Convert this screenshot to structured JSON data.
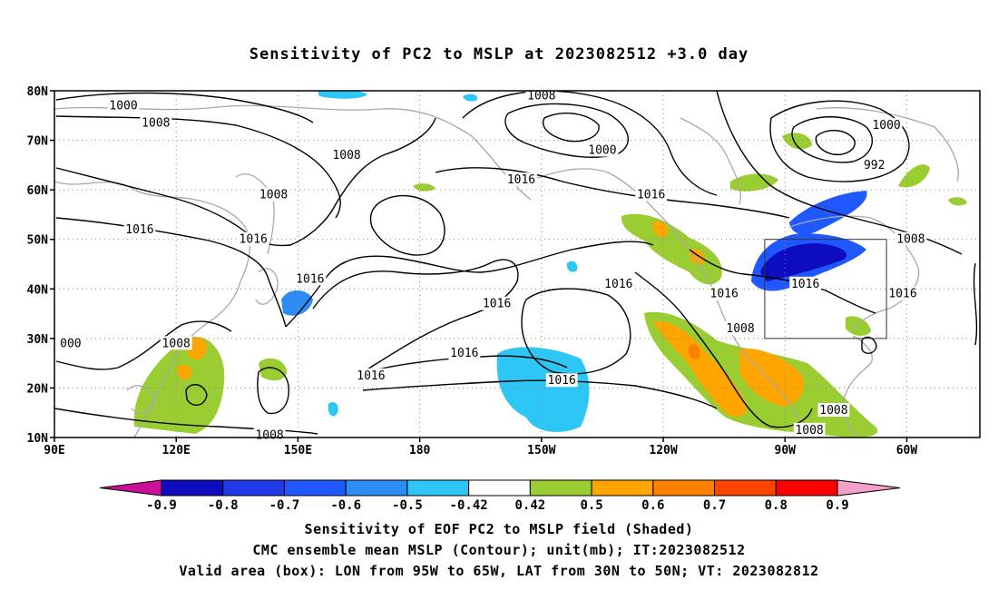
{
  "title": "Sensitivity of PC2 to MSLP at 2023082512 +3.0 day",
  "map": {
    "lat_labels": [
      "80N",
      "70N",
      "60N",
      "50N",
      "40N",
      "30N",
      "20N",
      "10N"
    ],
    "lon_labels": [
      "90E",
      "120E",
      "150E",
      "180",
      "150W",
      "120W",
      "90W",
      "60W"
    ],
    "lon_range_deg_east": [
      90,
      318
    ],
    "lat_range": [
      10,
      80
    ],
    "valid_box": {
      "lon": [
        -95,
        -65
      ],
      "lat": [
        30,
        50
      ]
    },
    "contour_labels": [
      {
        "text": "1000",
        "lon": 107,
        "lat": 77
      },
      {
        "text": "1008",
        "lon": 115,
        "lat": 73.5
      },
      {
        "text": "1008",
        "lon": 210,
        "lat": 79
      },
      {
        "text": "1000",
        "lon": 225,
        "lat": 68
      },
      {
        "text": "1000",
        "lon": 295,
        "lat": 73
      },
      {
        "text": "992",
        "lon": 292,
        "lat": 65
      },
      {
        "text": "1008",
        "lon": 162,
        "lat": 67
      },
      {
        "text": "1016",
        "lon": 205,
        "lat": 62
      },
      {
        "text": "1016",
        "lon": 237,
        "lat": 59
      },
      {
        "text": "1016",
        "lon": 111,
        "lat": 52
      },
      {
        "text": "1008",
        "lon": 144,
        "lat": 59
      },
      {
        "text": "1016",
        "lon": 139,
        "lat": 50
      },
      {
        "text": "1016",
        "lon": 153,
        "lat": 42
      },
      {
        "text": "1016",
        "lon": 199,
        "lat": 37
      },
      {
        "text": "1016",
        "lon": 229,
        "lat": 41
      },
      {
        "text": "1016",
        "lon": 255,
        "lat": 39
      },
      {
        "text": "1016",
        "lon": 275,
        "lat": 41
      },
      {
        "text": "1008",
        "lon": 301,
        "lat": 50
      },
      {
        "text": "1016",
        "lon": 299,
        "lat": 39
      },
      {
        "text": "1008",
        "lon": 120,
        "lat": 29
      },
      {
        "text": "000",
        "lon": 94,
        "lat": 29
      },
      {
        "text": "1016",
        "lon": 191,
        "lat": 27
      },
      {
        "text": "1016",
        "lon": 168,
        "lat": 22.5
      },
      {
        "text": "1016",
        "lon": 215,
        "lat": 21.5
      },
      {
        "text": "1008",
        "lon": 259,
        "lat": 32
      },
      {
        "text": "1008",
        "lon": 282,
        "lat": 15.5
      },
      {
        "text": "1008",
        "lon": 276,
        "lat": 11.5
      },
      {
        "text": "1008",
        "lon": 143,
        "lat": 10.5
      }
    ]
  },
  "colorbar": {
    "labels": [
      "-0.9",
      "-0.8",
      "-0.7",
      "-0.6",
      "-0.5",
      "-0.42",
      "0.42",
      "0.5",
      "0.6",
      "0.7",
      "0.8",
      "0.9"
    ],
    "colors": [
      "#c8109a",
      "#0d0dbf",
      "#1f39e8",
      "#1f58ff",
      "#2d8cf5",
      "#2ec7f5",
      "#ffffff",
      "#9acd32",
      "#ffa500",
      "#ff7f00",
      "#ff4500",
      "#ff0000",
      "#f5a0c8"
    ]
  },
  "captions": [
    "Sensitivity of EOF PC2 to MSLP field (Shaded)",
    "CMC ensemble mean MSLP (Contour); unit(mb); IT:2023082512",
    "Valid area (box): LON from 95W to 65W, LAT from 30N to 50N; VT: 2023082812"
  ]
}
